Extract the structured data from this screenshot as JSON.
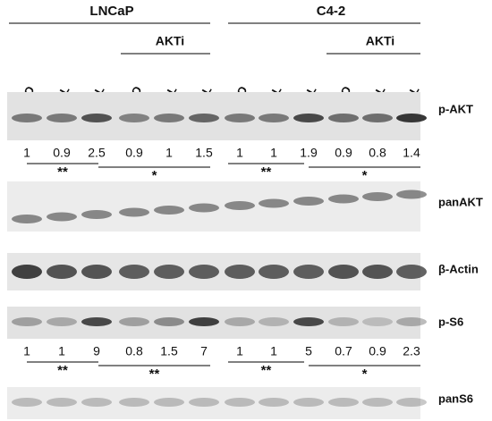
{
  "header": {
    "groups": [
      {
        "label": "LNCaP",
        "treatment": "AKTi"
      },
      {
        "label": "C4-2",
        "treatment": "AKTi"
      }
    ]
  },
  "lanes": [
    "DMSO",
    "LAL",
    "SAL",
    "DMSO",
    "LAL",
    "SAL",
    "DMSO",
    "LAL",
    "SAL",
    "DMSO",
    "LAL",
    "SAL"
  ],
  "blots": [
    {
      "label": "p-AKT",
      "quant": [
        1,
        0.9,
        2.5,
        0.9,
        1,
        1.5,
        1,
        1,
        1.9,
        0.9,
        0.8,
        1.4
      ],
      "significance": [
        "**",
        "*",
        "**",
        "*"
      ]
    },
    {
      "label": "panAKT"
    },
    {
      "label": "β-Actin"
    },
    {
      "label": "p-S6",
      "quant": [
        1,
        1,
        9,
        0.8,
        1.5,
        7,
        1,
        1,
        5,
        0.7,
        0.9,
        2.3
      ],
      "significance": [
        "**",
        "**",
        "**",
        "*"
      ]
    },
    {
      "label": "panS6"
    }
  ]
}
